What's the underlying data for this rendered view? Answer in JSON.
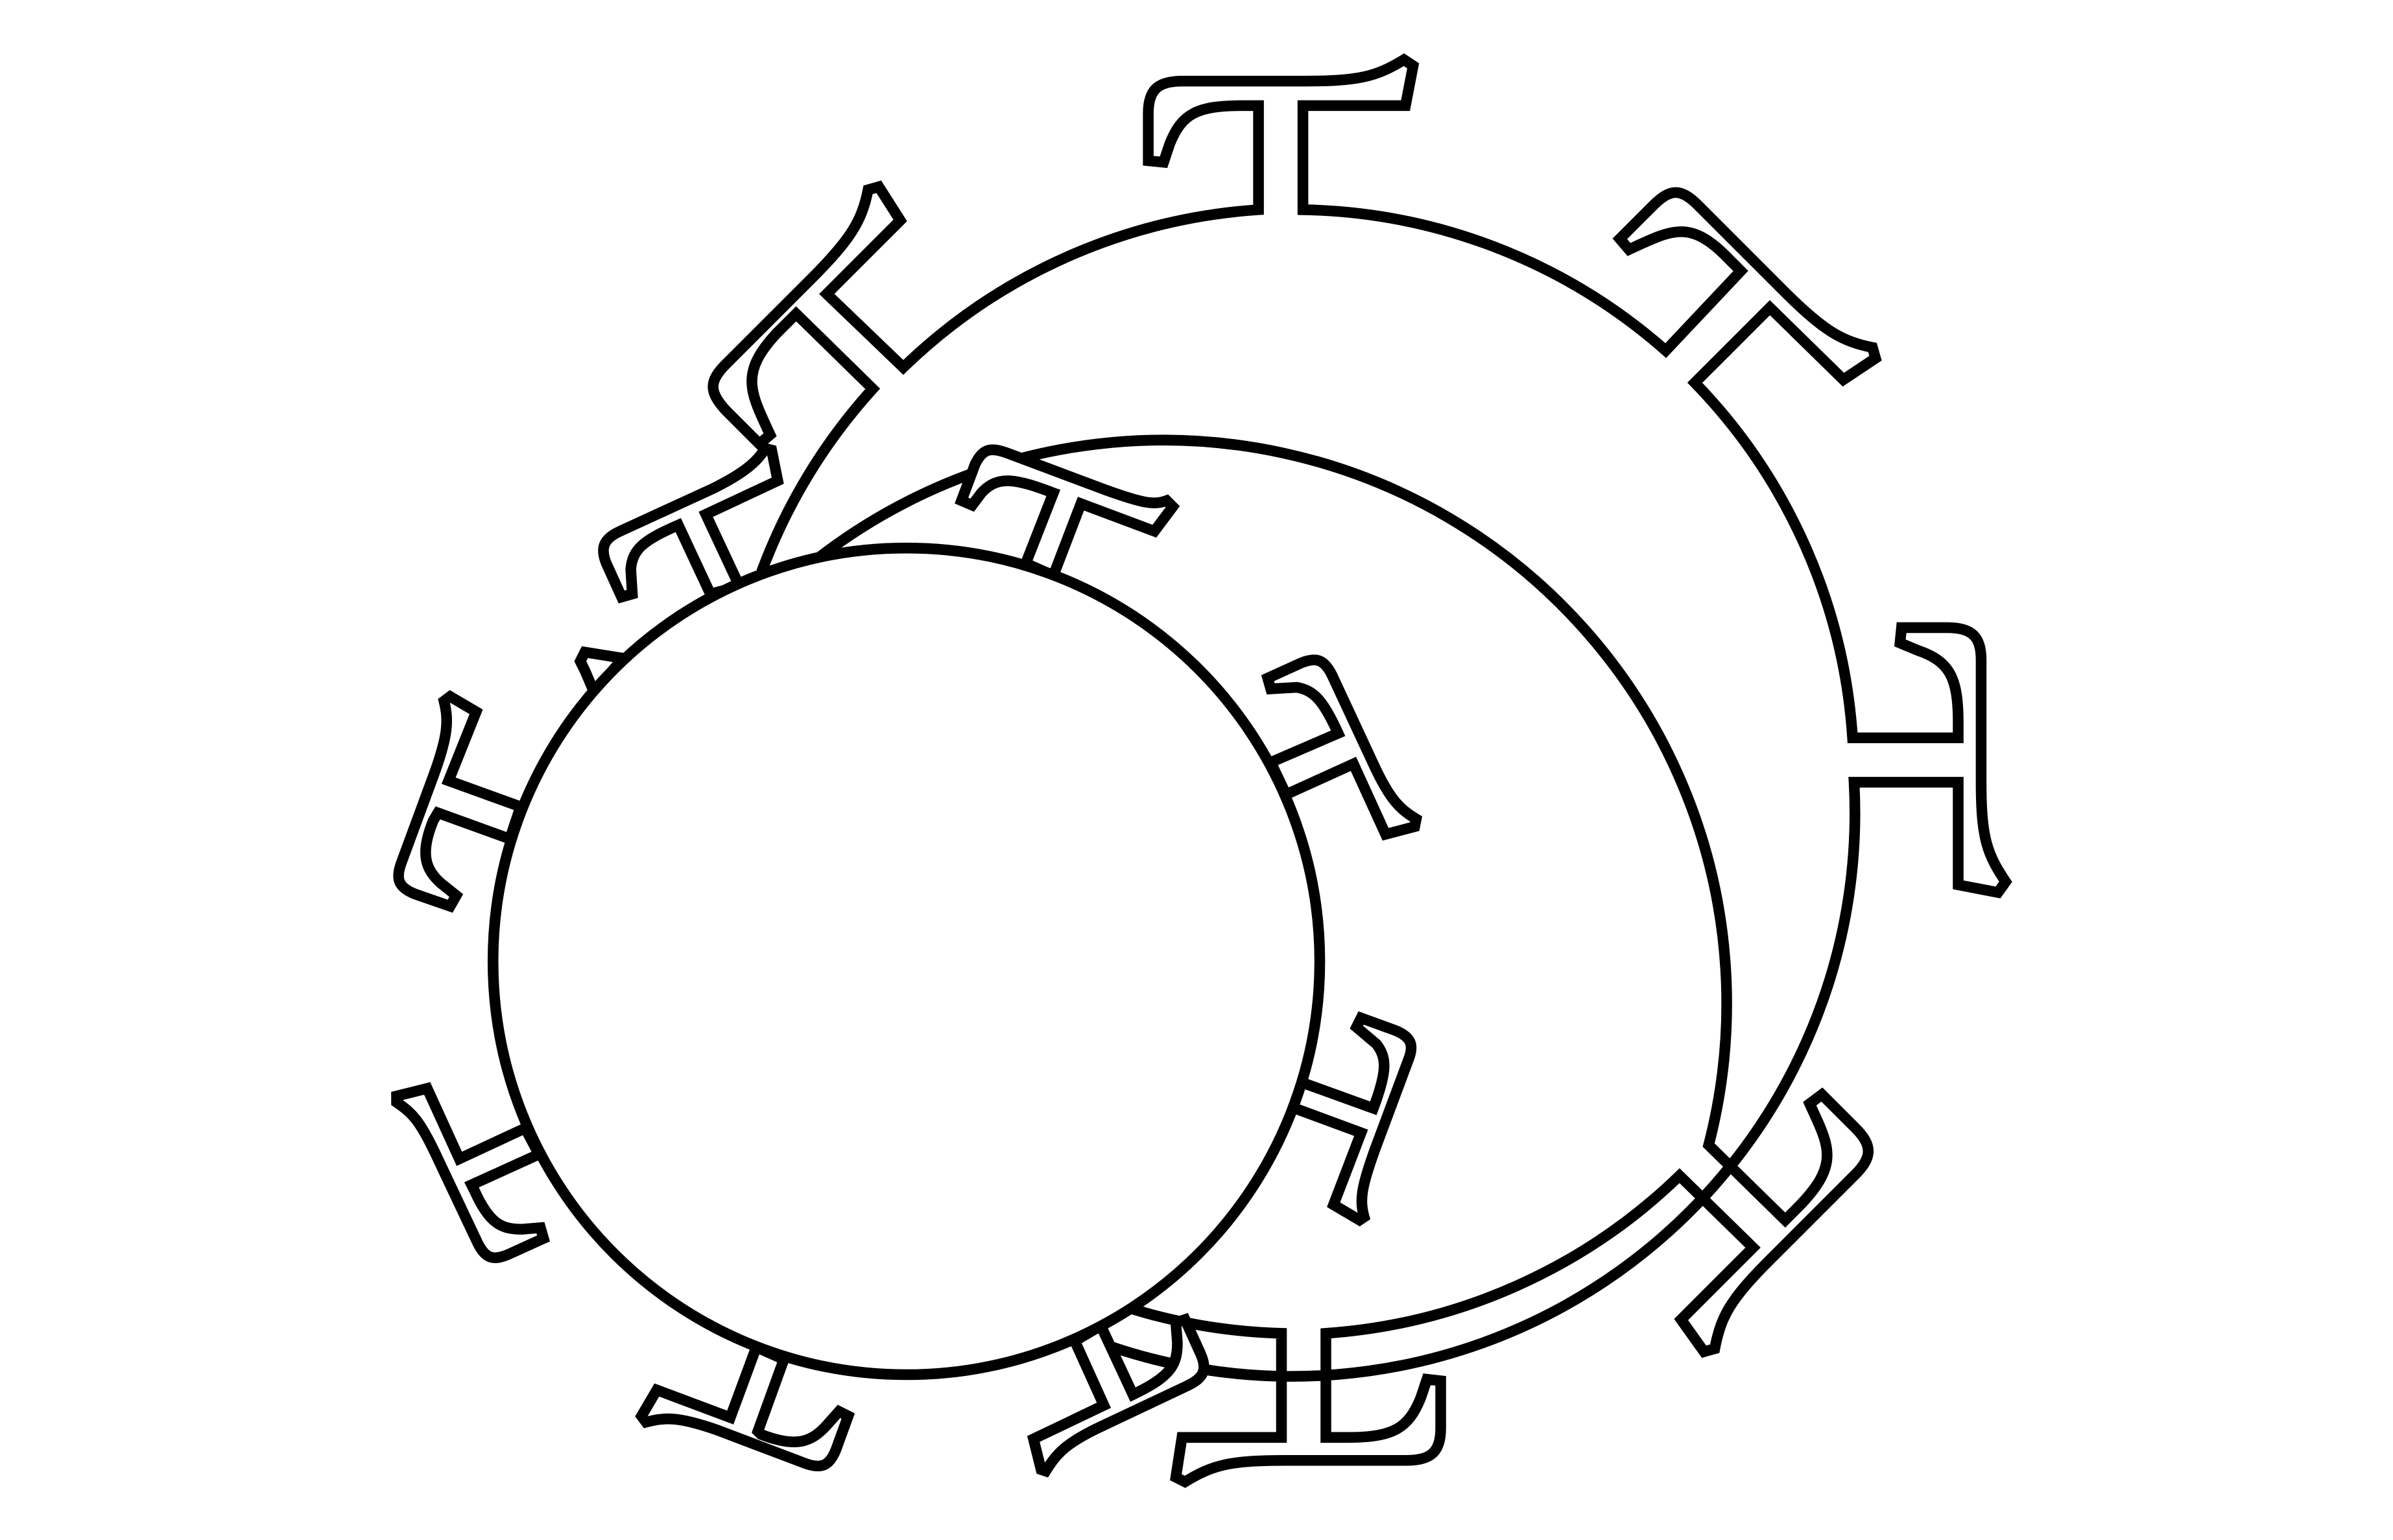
{
  "diagram": {
    "background_color": "#ffffff",
    "stroke_color": "#000000",
    "large_ring": {
      "shape": "ring-of-letterforms",
      "glyph_count": 8
    },
    "small_ring": {
      "shape": "ring-of-letterforms",
      "glyph_count": 11
    },
    "has_text": false
  }
}
